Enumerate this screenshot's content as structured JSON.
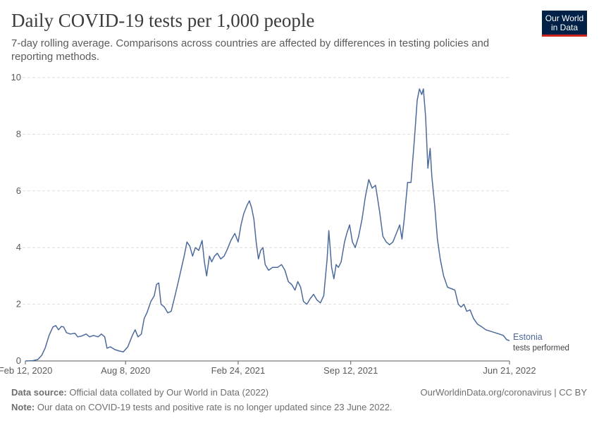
{
  "header": {
    "title": "Daily COVID-19 tests per 1,000 people",
    "subtitle": "7-day rolling average. Comparisons across countries are affected by differences in testing policies and reporting methods."
  },
  "logo": {
    "line1": "Our World",
    "line2": "in Data"
  },
  "footer": {
    "source_label": "Data source:",
    "source_text": " Official data collated by Our World in Data (2022)",
    "url": "OurWorldinData.org/coronavirus | CC BY",
    "note_label": "Note:",
    "note_text": " Our data on COVID-19 tests and positive rate is no longer updated since 23 June 2022."
  },
  "colors": {
    "line": "#4c6a9c",
    "grid": "#dddddd",
    "axis": "#5b5b5b",
    "text": "#5b5b5b"
  },
  "chart_data": {
    "type": "line",
    "xlabel": "",
    "ylabel": "",
    "ylim": [
      0,
      10
    ],
    "yticks": [
      0,
      2,
      4,
      6,
      8,
      10
    ],
    "xlim": [
      "2020-02-12",
      "2022-06-21"
    ],
    "xticks": [
      {
        "date": "2020-02-12",
        "label": "Feb 12, 2020"
      },
      {
        "date": "2020-08-08",
        "label": "Aug 8, 2020"
      },
      {
        "date": "2021-02-24",
        "label": "Feb 24, 2021"
      },
      {
        "date": "2021-09-12",
        "label": "Sep 12, 2021"
      },
      {
        "date": "2022-06-21",
        "label": "Jun 21, 2022"
      }
    ],
    "grid": true,
    "series": [
      {
        "name": "Estonia",
        "sublabel": "tests performed",
        "points": [
          [
            "2020-02-12",
            0.0
          ],
          [
            "2020-02-25",
            0.01
          ],
          [
            "2020-03-05",
            0.05
          ],
          [
            "2020-03-12",
            0.2
          ],
          [
            "2020-03-18",
            0.45
          ],
          [
            "2020-03-25",
            0.9
          ],
          [
            "2020-04-01",
            1.2
          ],
          [
            "2020-04-06",
            1.25
          ],
          [
            "2020-04-11",
            1.1
          ],
          [
            "2020-04-16",
            1.22
          ],
          [
            "2020-04-20",
            1.2
          ],
          [
            "2020-04-25",
            1.0
          ],
          [
            "2020-05-02",
            0.95
          ],
          [
            "2020-05-10",
            0.98
          ],
          [
            "2020-05-15",
            0.85
          ],
          [
            "2020-05-22",
            0.88
          ],
          [
            "2020-05-30",
            0.95
          ],
          [
            "2020-06-05",
            0.85
          ],
          [
            "2020-06-12",
            0.9
          ],
          [
            "2020-06-20",
            0.85
          ],
          [
            "2020-06-26",
            0.95
          ],
          [
            "2020-07-02",
            0.85
          ],
          [
            "2020-07-06",
            0.45
          ],
          [
            "2020-07-12",
            0.5
          ],
          [
            "2020-07-20",
            0.4
          ],
          [
            "2020-07-28",
            0.35
          ],
          [
            "2020-08-04",
            0.32
          ],
          [
            "2020-08-12",
            0.5
          ],
          [
            "2020-08-20",
            0.9
          ],
          [
            "2020-08-25",
            1.1
          ],
          [
            "2020-08-30",
            0.85
          ],
          [
            "2020-09-05",
            0.95
          ],
          [
            "2020-09-10",
            1.5
          ],
          [
            "2020-09-15",
            1.7
          ],
          [
            "2020-09-22",
            2.1
          ],
          [
            "2020-09-28",
            2.3
          ],
          [
            "2020-10-02",
            2.7
          ],
          [
            "2020-10-06",
            2.75
          ],
          [
            "2020-10-10",
            2.0
          ],
          [
            "2020-10-16",
            1.9
          ],
          [
            "2020-10-22",
            1.7
          ],
          [
            "2020-10-28",
            1.75
          ],
          [
            "2020-11-05",
            2.4
          ],
          [
            "2020-11-12",
            3.0
          ],
          [
            "2020-11-20",
            3.7
          ],
          [
            "2020-11-25",
            4.2
          ],
          [
            "2020-11-30",
            4.05
          ],
          [
            "2020-12-05",
            3.7
          ],
          [
            "2020-12-10",
            4.0
          ],
          [
            "2020-12-16",
            3.9
          ],
          [
            "2020-12-22",
            4.25
          ],
          [
            "2020-12-26",
            3.5
          ],
          [
            "2020-12-30",
            3.0
          ],
          [
            "2021-01-04",
            3.7
          ],
          [
            "2021-01-08",
            3.5
          ],
          [
            "2021-01-13",
            3.7
          ],
          [
            "2021-01-18",
            3.8
          ],
          [
            "2021-01-24",
            3.6
          ],
          [
            "2021-01-30",
            3.7
          ],
          [
            "2021-02-05",
            3.95
          ],
          [
            "2021-02-11",
            4.25
          ],
          [
            "2021-02-18",
            4.5
          ],
          [
            "2021-02-24",
            4.2
          ],
          [
            "2021-03-01",
            4.8
          ],
          [
            "2021-03-06",
            5.2
          ],
          [
            "2021-03-12",
            5.5
          ],
          [
            "2021-03-16",
            5.65
          ],
          [
            "2021-03-20",
            5.4
          ],
          [
            "2021-03-24",
            5.0
          ],
          [
            "2021-03-28",
            4.2
          ],
          [
            "2021-04-01",
            3.6
          ],
          [
            "2021-04-05",
            3.9
          ],
          [
            "2021-04-09",
            4.0
          ],
          [
            "2021-04-13",
            3.4
          ],
          [
            "2021-04-19",
            3.2
          ],
          [
            "2021-04-26",
            3.3
          ],
          [
            "2021-05-05",
            3.3
          ],
          [
            "2021-05-12",
            3.4
          ],
          [
            "2021-05-18",
            3.2
          ],
          [
            "2021-05-24",
            2.8
          ],
          [
            "2021-05-30",
            2.7
          ],
          [
            "2021-06-05",
            2.5
          ],
          [
            "2021-06-10",
            2.8
          ],
          [
            "2021-06-15",
            2.6
          ],
          [
            "2021-06-20",
            2.1
          ],
          [
            "2021-06-26",
            2.0
          ],
          [
            "2021-07-02",
            2.2
          ],
          [
            "2021-07-08",
            2.35
          ],
          [
            "2021-07-14",
            2.15
          ],
          [
            "2021-07-20",
            2.05
          ],
          [
            "2021-07-26",
            2.3
          ],
          [
            "2021-08-01",
            3.6
          ],
          [
            "2021-08-04",
            4.6
          ],
          [
            "2021-08-09",
            3.3
          ],
          [
            "2021-08-13",
            2.9
          ],
          [
            "2021-08-17",
            3.4
          ],
          [
            "2021-08-21",
            3.3
          ],
          [
            "2021-08-26",
            3.5
          ],
          [
            "2021-09-01",
            4.2
          ],
          [
            "2021-09-05",
            4.5
          ],
          [
            "2021-09-10",
            4.8
          ],
          [
            "2021-09-15",
            4.2
          ],
          [
            "2021-09-20",
            4.0
          ],
          [
            "2021-09-26",
            4.4
          ],
          [
            "2021-10-02",
            5.0
          ],
          [
            "2021-10-08",
            5.8
          ],
          [
            "2021-10-14",
            6.4
          ],
          [
            "2021-10-20",
            6.1
          ],
          [
            "2021-10-26",
            6.2
          ],
          [
            "2021-11-02",
            5.3
          ],
          [
            "2021-11-08",
            4.4
          ],
          [
            "2021-11-14",
            4.2
          ],
          [
            "2021-11-20",
            4.1
          ],
          [
            "2021-11-26",
            4.2
          ],
          [
            "2021-12-02",
            4.5
          ],
          [
            "2021-12-08",
            4.8
          ],
          [
            "2021-12-12",
            4.3
          ],
          [
            "2021-12-16",
            5.0
          ],
          [
            "2021-12-22",
            6.3
          ],
          [
            "2021-12-28",
            6.3
          ],
          [
            "2022-01-03",
            7.8
          ],
          [
            "2022-01-08",
            9.2
          ],
          [
            "2022-01-12",
            9.6
          ],
          [
            "2022-01-16",
            9.4
          ],
          [
            "2022-01-19",
            9.6
          ],
          [
            "2022-01-23",
            8.6
          ],
          [
            "2022-01-27",
            6.8
          ],
          [
            "2022-01-31",
            7.5
          ],
          [
            "2022-02-03",
            6.5
          ],
          [
            "2022-02-08",
            5.5
          ],
          [
            "2022-02-13",
            4.3
          ],
          [
            "2022-02-18",
            3.6
          ],
          [
            "2022-02-24",
            3.0
          ],
          [
            "2022-03-03",
            2.6
          ],
          [
            "2022-03-10",
            2.55
          ],
          [
            "2022-03-16",
            2.5
          ],
          [
            "2022-03-22",
            2.0
          ],
          [
            "2022-03-27",
            1.9
          ],
          [
            "2022-04-01",
            2.0
          ],
          [
            "2022-04-06",
            1.75
          ],
          [
            "2022-04-12",
            1.8
          ],
          [
            "2022-04-18",
            1.5
          ],
          [
            "2022-04-25",
            1.3
          ],
          [
            "2022-05-03",
            1.2
          ],
          [
            "2022-05-10",
            1.1
          ],
          [
            "2022-05-18",
            1.05
          ],
          [
            "2022-05-26",
            1.0
          ],
          [
            "2022-06-03",
            0.95
          ],
          [
            "2022-06-10",
            0.9
          ],
          [
            "2022-06-16",
            0.75
          ],
          [
            "2022-06-21",
            0.72
          ]
        ]
      }
    ]
  }
}
